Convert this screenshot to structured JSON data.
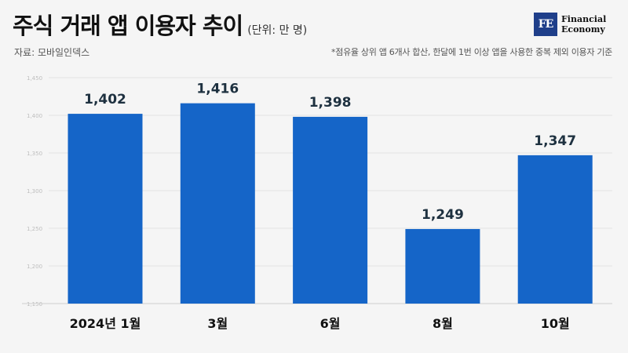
{
  "header": {
    "title": "주식 거래 앱 이용자 추이",
    "unit": "(단위: 만 명)",
    "source": "자료: 모바일인덱스",
    "note": "*점유율 상위 앱 6개사 합산, 한달에 1번 이상 앱을 사용한 중복 제외 이용자 기준"
  },
  "logo": {
    "mark": "FE",
    "line1": "Financial",
    "line2": "Economy",
    "color": "#1f3f8a"
  },
  "chart_data": {
    "type": "bar",
    "categories": [
      "2024년 1월",
      "3월",
      "6월",
      "8월",
      "10월"
    ],
    "values": [
      1402,
      1416,
      1398,
      1249,
      1347
    ],
    "value_labels": [
      "1,402",
      "1,416",
      "1,398",
      "1,249",
      "1,347"
    ],
    "ylim": [
      1150,
      1450
    ],
    "yticks": [
      1150,
      1200,
      1250,
      1300,
      1350,
      1400,
      1450
    ],
    "ytick_labels": [
      "1,150",
      "1,200",
      "1,250",
      "1,300",
      "1,350",
      "1,400",
      "1,450"
    ],
    "grid": true,
    "bar_color": "#1565c8"
  }
}
